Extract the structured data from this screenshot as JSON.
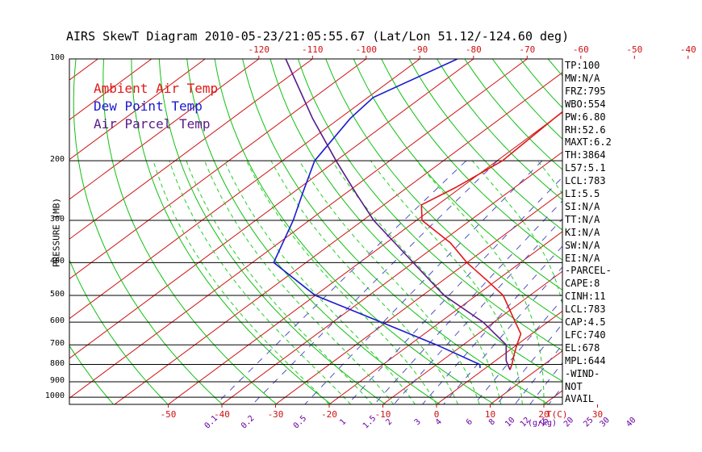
{
  "title": "AIRS SkewT Diagram 2010-05-23/21:05:55.67 (Lat/Lon 51.12/-124.60 deg)",
  "legend": [
    {
      "name": "Ambient Air Temp",
      "color": "#e01818"
    },
    {
      "name": "Dew Point Temp",
      "color": "#1a1ad0"
    },
    {
      "name": "Air Parcel Temp",
      "color": "#5a1a8a"
    }
  ],
  "indices": [
    "TP:100",
    "MW:N/A",
    "FRZ:795",
    "WBO:554",
    "PW:6.80",
    "RH:52.6",
    "MAXT:6.2",
    "TH:3864",
    "L57:5.1",
    "LCL:783",
    "LI:5.5",
    "SI:N/A",
    "TT:N/A",
    "KI:N/A",
    "SW:N/A",
    "EI:N/A",
    "-PARCEL-",
    "CAPE:8",
    "CINH:11",
    "LCL:783",
    "CAP:4.5",
    "LFC:740",
    "EL:678",
    "MPL:644",
    "-WIND-",
    "NOT",
    "AVAIL"
  ],
  "colors": {
    "isotherm": "#d01010",
    "dry_adiabat": "#10c010",
    "moist_adiabat": "#20d020",
    "mixing_ratio": "#5050c0",
    "axis_label": "#cc1010",
    "mixing_label": "#6a00a0"
  },
  "chart_data": {
    "type": "line",
    "title": "AIRS SkewT Diagram 2010-05-23/21:05:55.67 (Lat/Lon 51.12/-124.60 deg)",
    "ylabel": "PRESSURE (MB)",
    "xlabel": "T(C)",
    "y_scale": "log",
    "pressure_levels": [
      100,
      200,
      300,
      400,
      500,
      600,
      700,
      800,
      900,
      1000
    ],
    "pressure_tick_labels": [
      "100",
      "200",
      "300",
      "400",
      "500",
      "600",
      "700",
      "800",
      "900",
      "1000"
    ],
    "bottom_temp_ticks": [
      -50,
      -40,
      -30,
      -20,
      -10,
      0,
      10,
      20,
      30
    ],
    "bottom_temp_tick_labels": [
      "-50",
      "-40",
      "-30",
      "-20",
      "-10",
      "0",
      "10",
      "20",
      "30"
    ],
    "top_temp_ticks": [
      -120,
      -110,
      -100,
      -90,
      -80,
      -70,
      -60,
      -50,
      -40
    ],
    "top_temp_tick_labels": [
      "-120",
      "-110",
      "-100",
      "-90",
      "-80",
      "-70",
      "-60",
      "-50",
      "-40"
    ],
    "mixing_ratio_values": [
      0.1,
      0.2,
      0.5,
      1,
      1.5,
      2,
      3,
      4,
      6,
      8,
      10,
      12,
      15,
      20,
      25,
      30,
      40
    ],
    "mixing_ratio_labels": [
      "0.1",
      "0.2",
      "0.5",
      "1",
      "1.5",
      "2",
      "3",
      "4",
      "6",
      "8",
      "10",
      "12",
      "15",
      "20",
      "25",
      "30",
      "40"
    ],
    "mixing_ratio_unit": "(g/kg)",
    "series": [
      {
        "name": "Ambient Air Temp",
        "points": [
          [
            100,
            -51
          ],
          [
            150,
            -50
          ],
          [
            200,
            -49
          ],
          [
            240,
            -51
          ],
          [
            270,
            -53
          ],
          [
            300,
            -49
          ],
          [
            350,
            -38
          ],
          [
            400,
            -30
          ],
          [
            450,
            -22
          ],
          [
            500,
            -15
          ],
          [
            600,
            -6
          ],
          [
            650,
            -2
          ],
          [
            700,
            0
          ],
          [
            750,
            2
          ],
          [
            800,
            4
          ],
          [
            830,
            5
          ]
        ]
      },
      {
        "name": "Dew Point Temp",
        "points": [
          [
            100,
            -83
          ],
          [
            130,
            -89
          ],
          [
            150,
            -88
          ],
          [
            200,
            -84
          ],
          [
            250,
            -78
          ],
          [
            300,
            -73
          ],
          [
            400,
            -66
          ],
          [
            500,
            -50
          ],
          [
            600,
            -31
          ],
          [
            700,
            -15
          ],
          [
            800,
            -2
          ],
          [
            820,
            -1
          ]
        ]
      },
      {
        "name": "Air Parcel Temp",
        "points": [
          [
            100,
            -115
          ],
          [
            150,
            -95
          ],
          [
            200,
            -80
          ],
          [
            250,
            -68
          ],
          [
            300,
            -58
          ],
          [
            400,
            -40
          ],
          [
            500,
            -26
          ],
          [
            600,
            -12
          ],
          [
            700,
            -2
          ],
          [
            780,
            2
          ],
          [
            830,
            5
          ]
        ]
      }
    ]
  }
}
